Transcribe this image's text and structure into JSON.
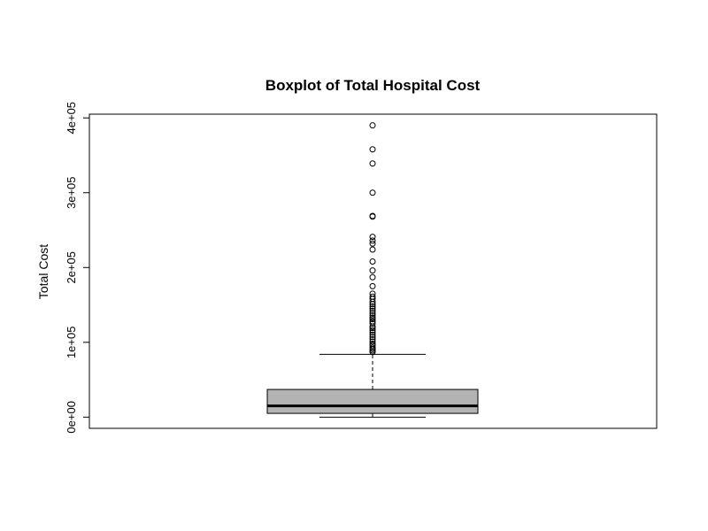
{
  "chart_data": {
    "type": "boxplot",
    "title": "Boxplot of Total Hospital Cost",
    "xlabel": "",
    "ylabel": "Total Cost",
    "ylim": [
      -15000,
      405000
    ],
    "yticks": [
      0,
      100000,
      200000,
      300000,
      400000
    ],
    "ytick_labels": [
      "0e+00",
      "1e+05",
      "2e+05",
      "3e+05",
      "4e+05"
    ],
    "box_fill": "#b3b3b3",
    "box": {
      "whisker_low": 0,
      "q1": 5000,
      "median": 15000,
      "q3": 37000,
      "whisker_high": 84000
    },
    "outliers": [
      390000,
      358000,
      339000,
      300000,
      269000,
      268000,
      241000,
      236000,
      232000,
      224000,
      208000,
      196000,
      187000,
      175000,
      165000,
      161000,
      158000,
      154000,
      151000,
      148000,
      145000,
      142000,
      139000,
      136000,
      133000,
      131000,
      128000,
      125000,
      121000,
      119000,
      116000,
      113000,
      110000,
      107000,
      104000,
      101000,
      98000,
      96000,
      93000,
      91000,
      89000,
      87000
    ]
  }
}
